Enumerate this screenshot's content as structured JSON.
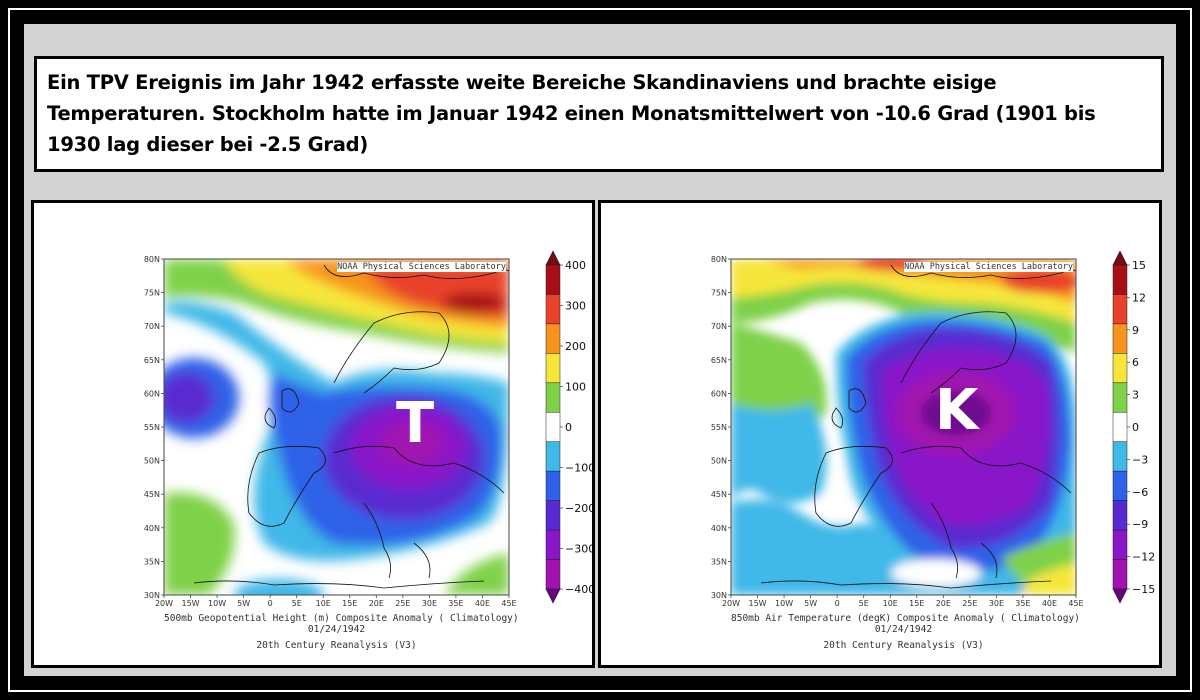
{
  "header": {
    "text": "Ein TPV Ereignis im Jahr 1942 erfasste weite Bereiche Skandinaviens und brachte eisige Temperaturen. Stockholm hatte im Januar 1942 einen Monatsmittelwert von -10.6 Grad (1901 bis 1930 lag dieser bei -2.5 Grad)"
  },
  "maps": [
    {
      "credit": "NOAA Physical Sciences Laboratory",
      "big_letter": "T",
      "caption_line1": "500mb Geopotential Height (m) Composite Anomaly ( Climatology)",
      "caption_line2": "01/24/1942",
      "caption_line3": "20th Century Reanalysis (V3)",
      "lat_ticks": [
        "80N",
        "75N",
        "70N",
        "65N",
        "60N",
        "55N",
        "50N",
        "45N",
        "40N",
        "35N",
        "30N"
      ],
      "lon_ticks": [
        "20W",
        "15W",
        "10W",
        "5W",
        "0",
        "5E",
        "10E",
        "15E",
        "20E",
        "25E",
        "30E",
        "35E",
        "40E",
        "45E"
      ],
      "colorbar_labels": [
        "400",
        "300",
        "200",
        "100",
        "0",
        "−100",
        "−200",
        "−300",
        "−400"
      ]
    },
    {
      "credit": "NOAA Physical Sciences Laboratory",
      "big_letter": "K",
      "caption_line1": "850mb Air Temperature (degK) Composite Anomaly ( Climatology)",
      "caption_line2": "01/24/1942",
      "caption_line3": "20th Century Reanalysis (V3)",
      "lat_ticks": [
        "80N",
        "75N",
        "70N",
        "65N",
        "60N",
        "55N",
        "50N",
        "45N",
        "40N",
        "35N",
        "30N"
      ],
      "lon_ticks": [
        "20W",
        "15W",
        "10W",
        "5W",
        "0",
        "5E",
        "10E",
        "15E",
        "20E",
        "25E",
        "30E",
        "35E",
        "40E",
        "45E"
      ],
      "colorbar_labels": [
        "15",
        "12",
        "9",
        "6",
        "3",
        "0",
        "−3",
        "−6",
        "−9",
        "−12",
        "−15"
      ]
    }
  ],
  "colors": {
    "dark_red": "#a50f15",
    "red": "#e8432a",
    "orange": "#f7931e",
    "yellow": "#f6e63b",
    "green": "#7fd14a",
    "white": "#ffffff",
    "cyan": "#40b8e8",
    "blue": "#2f62e8",
    "indigo": "#5a2ad1",
    "purple": "#8a16c9",
    "magenta": "#a012b0"
  }
}
